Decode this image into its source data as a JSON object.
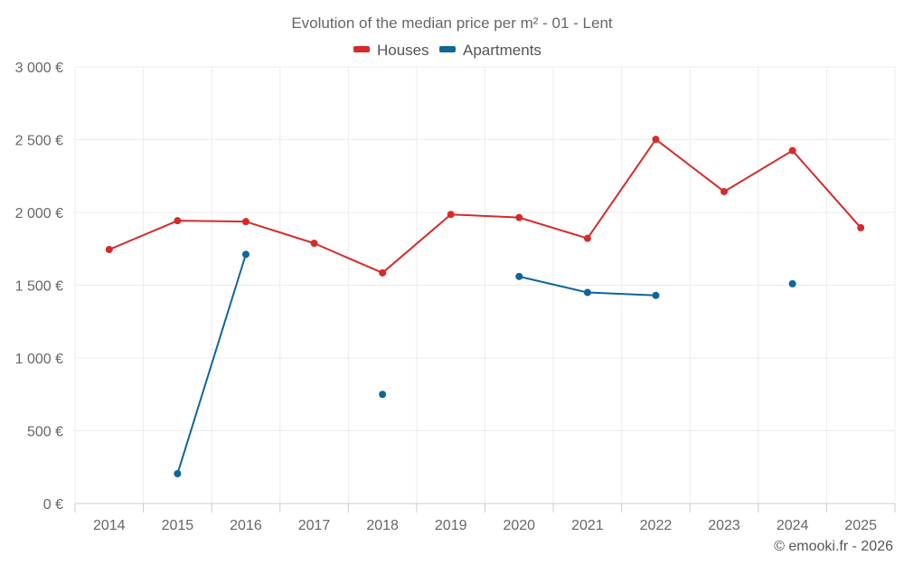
{
  "chart_data": {
    "type": "line",
    "title": "Evolution of the median price per m² - 01 - Lent",
    "credit": "© emooki.fr - 2026",
    "categories": [
      "2014",
      "2015",
      "2016",
      "2017",
      "2018",
      "2019",
      "2020",
      "2021",
      "2022",
      "2023",
      "2024",
      "2025"
    ],
    "ylim": [
      0,
      3000
    ],
    "yticks": [
      0,
      500,
      1000,
      1500,
      2000,
      2500,
      3000
    ],
    "ytick_labels": [
      "0 €",
      "500 €",
      "1 000 €",
      "1 500 €",
      "2 000 €",
      "2 500 €",
      "3 000 €"
    ],
    "grid": true,
    "legend_position": "top-center",
    "series": [
      {
        "name": "Houses",
        "color": "#d62a2a",
        "values": [
          1745,
          1943,
          1937,
          1788,
          1585,
          1986,
          1965,
          1822,
          2502,
          2143,
          2425,
          1895
        ]
      },
      {
        "name": "Apartments",
        "color": "#0e6699",
        "values": [
          null,
          205,
          1712,
          null,
          750,
          null,
          1560,
          1450,
          1430,
          null,
          1510,
          null
        ]
      }
    ]
  }
}
